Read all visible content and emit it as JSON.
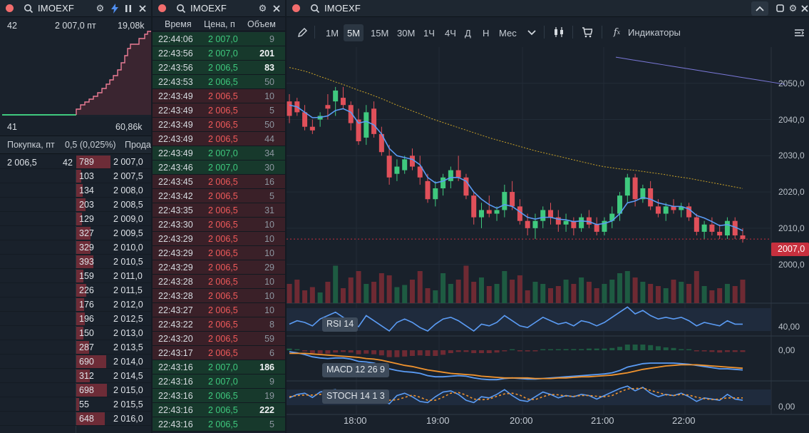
{
  "book_panel": {
    "ticker": "IMOEXF",
    "top_left": "42",
    "top_mid": "2 007,0 пт",
    "top_right": "19,08k",
    "bottom_left": "41",
    "bottom_right": "60,86k",
    "bid_label": "Покупка, пт",
    "spread": "0,5 (0,025%)",
    "ask_label": "Прода",
    "bid_price": "2 006,5",
    "bid_volume": "42",
    "asks": [
      {
        "volume": "789",
        "price": "2 007,0",
        "fill": 0.96
      },
      {
        "volume": "103",
        "price": "2 007,5",
        "fill": 0.13
      },
      {
        "volume": "134",
        "price": "2 008,0",
        "fill": 0.17
      },
      {
        "volume": "203",
        "price": "2 008,5",
        "fill": 0.25
      },
      {
        "volume": "129",
        "price": "2 009,0",
        "fill": 0.16
      },
      {
        "volume": "327",
        "price": "2 009,5",
        "fill": 0.4
      },
      {
        "volume": "329",
        "price": "2 010,0",
        "fill": 0.4
      },
      {
        "volume": "393",
        "price": "2 010,5",
        "fill": 0.48
      },
      {
        "volume": "159",
        "price": "2 011,0",
        "fill": 0.2
      },
      {
        "volume": "226",
        "price": "2 011,5",
        "fill": 0.28
      },
      {
        "volume": "176",
        "price": "2 012,0",
        "fill": 0.22
      },
      {
        "volume": "196",
        "price": "2 012,5",
        "fill": 0.24
      },
      {
        "volume": "150",
        "price": "2 013,0",
        "fill": 0.19
      },
      {
        "volume": "287",
        "price": "2 013,5",
        "fill": 0.35
      },
      {
        "volume": "690",
        "price": "2 014,0",
        "fill": 0.84
      },
      {
        "volume": "312",
        "price": "2 014,5",
        "fill": 0.38
      },
      {
        "volume": "698",
        "price": "2 015,0",
        "fill": 0.85
      },
      {
        "volume": "55",
        "price": "2 015,5",
        "fill": 0.07
      },
      {
        "volume": "648",
        "price": "2 016,0",
        "fill": 0.79
      }
    ]
  },
  "trades_panel": {
    "ticker": "IMOEXF",
    "col_time": "Время",
    "col_price": "Цена, п",
    "col_volume": "Объем",
    "rows": [
      {
        "time": "22:44:06",
        "price": "2 007,0",
        "volume": "9",
        "side": "g",
        "bold": false
      },
      {
        "time": "22:43:56",
        "price": "2 007,0",
        "volume": "201",
        "side": "g",
        "bold": true
      },
      {
        "time": "22:43:56",
        "price": "2 006,5",
        "volume": "83",
        "side": "g",
        "bold": true
      },
      {
        "time": "22:43:53",
        "price": "2 006,5",
        "volume": "50",
        "side": "g",
        "bold": false
      },
      {
        "time": "22:43:49",
        "price": "2 006,5",
        "volume": "10",
        "side": "r",
        "bold": false
      },
      {
        "time": "22:43:49",
        "price": "2 006,5",
        "volume": "5",
        "side": "r",
        "bold": false
      },
      {
        "time": "22:43:49",
        "price": "2 006,5",
        "volume": "50",
        "side": "r",
        "bold": false
      },
      {
        "time": "22:43:49",
        "price": "2 006,5",
        "volume": "44",
        "side": "r",
        "bold": false
      },
      {
        "time": "22:43:49",
        "price": "2 007,0",
        "volume": "34",
        "side": "g",
        "bold": false
      },
      {
        "time": "22:43:46",
        "price": "2 007,0",
        "volume": "30",
        "side": "g",
        "bold": false
      },
      {
        "time": "22:43:45",
        "price": "2 006,5",
        "volume": "16",
        "side": "r",
        "bold": false
      },
      {
        "time": "22:43:42",
        "price": "2 006,5",
        "volume": "5",
        "side": "r",
        "bold": false
      },
      {
        "time": "22:43:35",
        "price": "2 006,5",
        "volume": "31",
        "side": "r",
        "bold": false
      },
      {
        "time": "22:43:30",
        "price": "2 006,5",
        "volume": "10",
        "side": "r",
        "bold": false
      },
      {
        "time": "22:43:29",
        "price": "2 006,5",
        "volume": "10",
        "side": "r",
        "bold": false
      },
      {
        "time": "22:43:29",
        "price": "2 006,5",
        "volume": "10",
        "side": "r",
        "bold": false
      },
      {
        "time": "22:43:29",
        "price": "2 006,5",
        "volume": "29",
        "side": "r",
        "bold": false
      },
      {
        "time": "22:43:28",
        "price": "2 006,5",
        "volume": "10",
        "side": "r",
        "bold": false
      },
      {
        "time": "22:43:28",
        "price": "2 006,5",
        "volume": "10",
        "side": "r",
        "bold": false
      },
      {
        "time": "22:43:27",
        "price": "2 006,5",
        "volume": "10",
        "side": "r",
        "bold": false
      },
      {
        "time": "22:43:22",
        "price": "2 006,5",
        "volume": "8",
        "side": "r",
        "bold": false
      },
      {
        "time": "22:43:20",
        "price": "2 006,5",
        "volume": "59",
        "side": "r",
        "bold": false
      },
      {
        "time": "22:43:17",
        "price": "2 006,5",
        "volume": "6",
        "side": "r",
        "bold": false
      },
      {
        "time": "22:43:16",
        "price": "2 007,0",
        "volume": "186",
        "side": "g",
        "bold": true
      },
      {
        "time": "22:43:16",
        "price": "2 007,0",
        "volume": "9",
        "side": "g",
        "bold": false
      },
      {
        "time": "22:43:16",
        "price": "2 006,5",
        "volume": "19",
        "side": "g",
        "bold": false
      },
      {
        "time": "22:43:16",
        "price": "2 006,5",
        "volume": "222",
        "side": "g",
        "bold": true
      },
      {
        "time": "22:43:16",
        "price": "2 006,5",
        "volume": "5",
        "side": "g",
        "bold": false
      }
    ]
  },
  "chart_panel": {
    "ticker": "IMOEXF",
    "timeframes": [
      "1М",
      "5М",
      "15М",
      "30М",
      "1Ч",
      "4Ч",
      "Д",
      "Н",
      "Мес"
    ],
    "active_timeframe": "5М",
    "indicators_label": "Индикаторы",
    "last_price": "2007,0",
    "y_ticks": [
      "2050,0",
      "2040,0",
      "2030,0",
      "2020,0",
      "2010,0",
      "2000,0"
    ],
    "x_ticks": [
      "18:00",
      "19:00",
      "20:00",
      "21:00",
      "22:00"
    ],
    "rsi_label": "RSI 14",
    "rsi_tick": "40,00",
    "macd_label": "MACD 12 26 9",
    "macd_tick": "0,00",
    "stoch_label": "STOCH 14 1 3",
    "stoch_tick": "0,00"
  },
  "colors": {
    "up": "#3fc97e",
    "down": "#e0505a",
    "ma": "#5b9cf5",
    "orange": "#f0932e"
  },
  "chart_data": {
    "type": "candlestick",
    "x_ticks": [
      "18:00",
      "19:00",
      "20:00",
      "21:00",
      "22:00"
    ],
    "y_ticks": [
      2050,
      2040,
      2030,
      2020,
      2010,
      2000
    ],
    "ylim": [
      1995,
      2060
    ],
    "last_price": 2007.0,
    "candles": [
      [
        2045,
        2047,
        2039,
        2041
      ],
      [
        2045,
        2046,
        2041,
        2042
      ],
      [
        2042,
        2044,
        2037,
        2038
      ],
      [
        2038,
        2040,
        2036,
        2037
      ],
      [
        2040,
        2042,
        2038,
        2041
      ],
      [
        2044,
        2047,
        2040,
        2043
      ],
      [
        2045,
        2049,
        2041,
        2048
      ],
      [
        2046,
        2049,
        2043,
        2044
      ],
      [
        2044,
        2045,
        2037,
        2039
      ],
      [
        2040,
        2043,
        2033,
        2034
      ],
      [
        2035,
        2044,
        2033,
        2042
      ],
      [
        2043,
        2045,
        2035,
        2036
      ],
      [
        2036,
        2038,
        2030,
        2031
      ],
      [
        2030,
        2033,
        2022,
        2024
      ],
      [
        2025,
        2029,
        2023,
        2027
      ],
      [
        2026,
        2030,
        2025,
        2029
      ],
      [
        2030,
        2032,
        2026,
        2027
      ],
      [
        2027,
        2030,
        2022,
        2024
      ],
      [
        2023,
        2025,
        2017,
        2018
      ],
      [
        2018,
        2023,
        2016,
        2021
      ],
      [
        2021,
        2025,
        2019,
        2024
      ],
      [
        2023,
        2027,
        2021,
        2026
      ],
      [
        2026,
        2030,
        2023,
        2024
      ],
      [
        2024,
        2025,
        2018,
        2019
      ],
      [
        2019,
        2020,
        2011,
        2013
      ],
      [
        2013,
        2017,
        2010,
        2015
      ],
      [
        2015,
        2019,
        2013,
        2014
      ],
      [
        2014,
        2016,
        2012,
        2015
      ],
      [
        2015,
        2022,
        2013,
        2020
      ],
      [
        2020,
        2023,
        2015,
        2016
      ],
      [
        2016,
        2018,
        2011,
        2012
      ],
      [
        2012,
        2014,
        2008,
        2010
      ],
      [
        2010,
        2014,
        2007,
        2012
      ],
      [
        2012,
        2016,
        2010,
        2015
      ],
      [
        2015,
        2017,
        2011,
        2013
      ],
      [
        2013,
        2015,
        2009,
        2011
      ],
      [
        2011,
        2014,
        2009,
        2012
      ],
      [
        2012,
        2013,
        2008,
        2010
      ],
      [
        2010,
        2014,
        2009,
        2013
      ],
      [
        2013,
        2015,
        2010,
        2011
      ],
      [
        2011,
        2013,
        2008,
        2009
      ],
      [
        2009,
        2013,
        2008,
        2012
      ],
      [
        2012,
        2016,
        2010,
        2014
      ],
      [
        2014,
        2020,
        2012,
        2019
      ],
      [
        2019,
        2025,
        2017,
        2024
      ],
      [
        2024,
        2025,
        2016,
        2018
      ],
      [
        2018,
        2022,
        2017,
        2021
      ],
      [
        2021,
        2023,
        2015,
        2016
      ],
      [
        2016,
        2018,
        2013,
        2014
      ],
      [
        2014,
        2017,
        2012,
        2016
      ],
      [
        2016,
        2018,
        2014,
        2015
      ],
      [
        2015,
        2017,
        2013,
        2016
      ],
      [
        2016,
        2017,
        2012,
        2013
      ],
      [
        2013,
        2014,
        2008,
        2009
      ],
      [
        2009,
        2012,
        2007,
        2011
      ],
      [
        2011,
        2013,
        2008,
        2009
      ],
      [
        2009,
        2011,
        2007,
        2008
      ],
      [
        2008,
        2013,
        2007,
        2012
      ],
      [
        2012,
        2013,
        2007,
        2008
      ],
      [
        2008,
        2010,
        2006,
        2007
      ]
    ],
    "volumes": [
      18,
      22,
      12,
      15,
      10,
      20,
      35,
      14,
      24,
      30,
      18,
      20,
      28,
      26,
      15,
      17,
      22,
      30,
      14,
      12,
      28,
      18,
      22,
      35,
      20,
      24,
      16,
      18,
      30,
      22,
      26,
      12,
      20,
      18,
      14,
      16,
      22,
      18,
      24,
      20,
      14,
      18,
      22,
      28,
      30,
      24,
      20,
      18,
      16,
      14,
      22,
      20,
      18,
      30,
      16,
      12,
      14,
      18,
      16,
      22
    ],
    "ema_fast": [
      2044,
      2043.5,
      2042,
      2040.5,
      2040.6,
      2041,
      2042.5,
      2043,
      2042,
      2039,
      2039.5,
      2038.5,
      2036,
      2032,
      2030,
      2029.5,
      2029,
      2027.5,
      2024,
      2022.5,
      2023,
      2024,
      2024,
      2023,
      2020,
      2018,
      2016.5,
      2015.5,
      2016.5,
      2016,
      2014.5,
      2013,
      2012.5,
      2013,
      2013,
      2012.5,
      2012.3,
      2011.8,
      2012,
      2011.8,
      2011,
      2011.3,
      2012,
      2014,
      2017,
      2017.5,
      2018.5,
      2018,
      2017,
      2016.5,
      2016,
      2016,
      2015.3,
      2013.5,
      2012.8,
      2011.8,
      2010.7,
      2011,
      2010.3,
      2009.3
    ],
    "ma_slow": [
      2052,
      2051.5,
      2051,
      2050.3,
      2049.5,
      2048.8,
      2048,
      2047.3,
      2046.5,
      2045.7,
      2045,
      2044.2,
      2043.4,
      2042.5,
      2041.6,
      2040.8,
      2040,
      2039.2,
      2038.3,
      2037.5,
      2036.8,
      2036.1,
      2035.4,
      2034.7,
      2034,
      2033.3,
      2032.6,
      2032,
      2031.4,
      2030.8,
      2030.2,
      2029.6,
      2029,
      2028.5,
      2028,
      2027.5,
      2027,
      2026.5,
      2026,
      2025.5,
      2025,
      2024.6,
      2024.3,
      2024,
      2023.8,
      2023.6,
      2023.3,
      2023,
      2022.7,
      2022.4,
      2022,
      2021.7,
      2021.4,
      2021,
      2020.6,
      2020.2,
      2019.8,
      2019.4,
      2019,
      2018.6
    ],
    "ma_long": [
      2058,
      2057.7,
      2057.4,
      2057.1,
      2056.8,
      2056.5,
      2056.2,
      2055.9,
      2055.6,
      2055.3,
      2055,
      2054.7,
      2054.4,
      2054.1,
      2053.8,
      2053.5,
      2053.2,
      2052.9,
      2052.6,
      2052.3,
      2052,
      2051.7,
      2051.4,
      2051.1,
      2050.8,
      2050.5
    ],
    "rsi": [
      38,
      42,
      40,
      36,
      44,
      48,
      52,
      46,
      40,
      35,
      48,
      42,
      36,
      30,
      40,
      44,
      40,
      34,
      30,
      38,
      44,
      46,
      42,
      36,
      30,
      38,
      36,
      40,
      48,
      42,
      36,
      34,
      40,
      46,
      42,
      38,
      40,
      36,
      42,
      40,
      36,
      40,
      46,
      52,
      58,
      50,
      54,
      48,
      44,
      46,
      44,
      46,
      42,
      36,
      40,
      38,
      36,
      42,
      38,
      38
    ],
    "macd": [
      2.5,
      2.3,
      2,
      1.6,
      1.4,
      1.3,
      1.4,
      1.4,
      1.2,
      0.8,
      0.7,
      0.5,
      0.1,
      -0.5,
      -0.8,
      -1,
      -1.1,
      -1.3,
      -1.7,
      -1.9,
      -1.9,
      -1.8,
      -1.7,
      -1.8,
      -2.1,
      -2.3,
      -2.4,
      -2.4,
      -2.2,
      -2.1,
      -2.2,
      -2.3,
      -2.3,
      -2.2,
      -2.1,
      -2,
      -1.9,
      -1.8,
      -1.7,
      -1.6,
      -1.5,
      -1.4,
      -1.2,
      -0.8,
      -0.2,
      0.1,
      0.4,
      0.5,
      0.5,
      0.5,
      0.5,
      0.4,
      0.3,
      0.1,
      -0.1,
      -0.3,
      -0.5,
      -0.5,
      -0.6,
      -0.7
    ],
    "macd_signal": [
      2.2,
      2.2,
      2.2,
      2.1,
      2,
      1.9,
      1.8,
      1.7,
      1.6,
      1.5,
      1.3,
      1.2,
      1,
      0.7,
      0.4,
      0.1,
      -0.1,
      -0.4,
      -0.7,
      -0.9,
      -1.1,
      -1.3,
      -1.4,
      -1.5,
      -1.6,
      -1.8,
      -1.9,
      -2,
      -2.1,
      -2.1,
      -2.1,
      -2.1,
      -2.2,
      -2.2,
      -2.2,
      -2.1,
      -2.1,
      -2,
      -1.9,
      -1.9,
      -1.8,
      -1.7,
      -1.6,
      -1.4,
      -1.2,
      -0.9,
      -0.6,
      -0.4,
      -0.2,
      0,
      0.1,
      0.2,
      0.2,
      0.2,
      0.1,
      0,
      -0.1,
      -0.2,
      -0.3,
      -0.4
    ],
    "stoch_k": [
      40,
      55,
      60,
      42,
      65,
      70,
      75,
      50,
      35,
      20,
      60,
      45,
      30,
      15,
      50,
      60,
      45,
      25,
      20,
      45,
      65,
      70,
      55,
      30,
      20,
      45,
      40,
      55,
      75,
      50,
      30,
      25,
      45,
      65,
      55,
      40,
      50,
      45,
      55,
      50,
      35,
      50,
      65,
      80,
      90,
      70,
      85,
      60,
      45,
      55,
      50,
      60,
      45,
      25,
      40,
      35,
      30,
      55,
      35,
      30
    ],
    "stoch_d": [
      45,
      50,
      52,
      52,
      55,
      58,
      70,
      65,
      53,
      35,
      38,
      42,
      45,
      30,
      32,
      42,
      52,
      43,
      30,
      30,
      43,
      60,
      63,
      52,
      35,
      32,
      35,
      47,
      57,
      60,
      52,
      35,
      33,
      45,
      55,
      53,
      48,
      47,
      50,
      50,
      47,
      45,
      50,
      65,
      78,
      80,
      82,
      72,
      63,
      53,
      50,
      55,
      52,
      43,
      37,
      33,
      35,
      40,
      40,
      40
    ]
  }
}
